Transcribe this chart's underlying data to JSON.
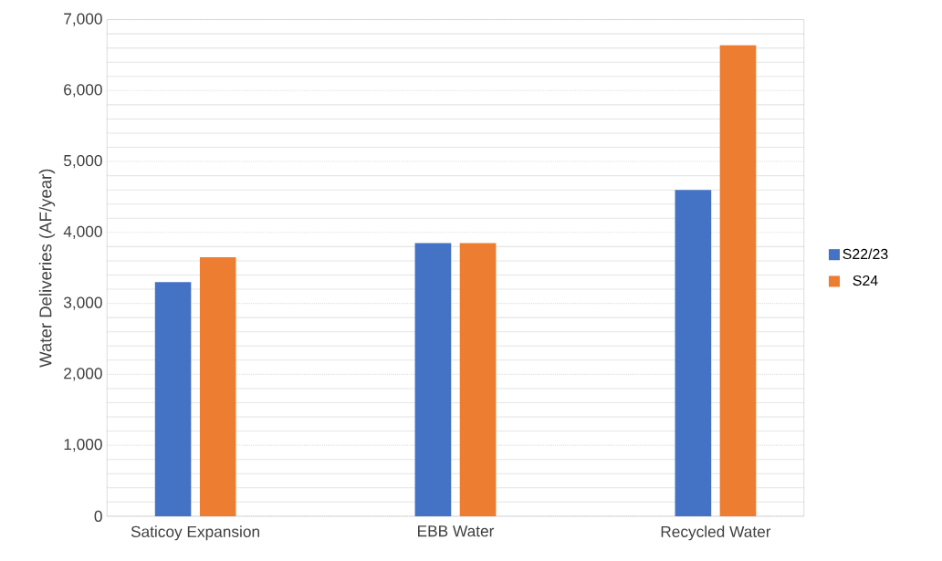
{
  "chart_data": {
    "type": "bar",
    "ylabel": "Water Deliveries (AF/year)",
    "categories": [
      "Saticoy Expansion",
      "EBB Water",
      "Recycled Water"
    ],
    "series": [
      {
        "name": "S22/23",
        "color": "#4472c4",
        "values": [
          3300,
          3850,
          4600
        ]
      },
      {
        "name": "S24",
        "color": "#ed7d31",
        "values": [
          3650,
          3850,
          6640
        ]
      }
    ],
    "ylim": [
      0,
      7000
    ],
    "yticks": [
      {
        "value": 0,
        "label": "0"
      },
      {
        "value": 1000,
        "label": "1,000"
      },
      {
        "value": 2000,
        "label": "2,000"
      },
      {
        "value": 3000,
        "label": "3,000"
      },
      {
        "value": 4000,
        "label": "4,000"
      },
      {
        "value": 5000,
        "label": "5,000"
      },
      {
        "value": 6000,
        "label": "6,000"
      },
      {
        "value": 7000,
        "label": "7,000"
      }
    ],
    "grid": "y",
    "legend": "right"
  }
}
